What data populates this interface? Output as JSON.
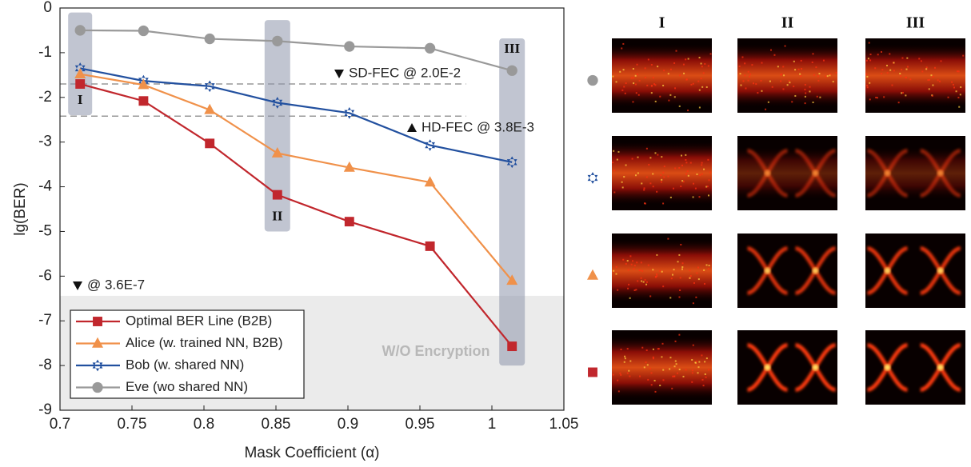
{
  "chart_data": {
    "type": "line",
    "xlabel": "Mask Coefficient (α)",
    "ylabel": "lg(BER)",
    "xlim": [
      0.7,
      1.05
    ],
    "xticks": [
      0.7,
      0.75,
      0.8,
      0.85,
      0.9,
      0.95,
      1,
      1.05
    ],
    "ylim": [
      -9,
      0
    ],
    "yticks": [
      0,
      -1,
      -2,
      -3,
      -4,
      -5,
      -6,
      -7,
      -8,
      -9
    ],
    "x": [
      0.714,
      0.758,
      0.804,
      0.851,
      0.901,
      0.957,
      1.014
    ],
    "series": [
      {
        "name": "Optimal BER Line (B2B)",
        "color": "#c1272d",
        "marker": "square",
        "values": [
          -1.7,
          -2.08,
          -3.03,
          -4.18,
          -4.78,
          -5.33,
          -7.57
        ]
      },
      {
        "name": "Alice (w. trained NN, B2B)",
        "color": "#f0914a",
        "marker": "triangle",
        "values": [
          -1.48,
          -1.72,
          -2.28,
          -3.25,
          -3.57,
          -3.9,
          -6.1
        ]
      },
      {
        "name": "Bob (w. shared NN)",
        "color": "#22509f",
        "marker": "hexagram",
        "values": [
          -1.35,
          -1.63,
          -1.75,
          -2.12,
          -2.35,
          -3.07,
          -3.45
        ]
      },
      {
        "name": "Eve (wo shared NN)",
        "color": "#999999",
        "marker": "circle",
        "values": [
          -0.5,
          -0.51,
          -0.69,
          -0.74,
          -0.86,
          -0.9,
          -1.4
        ]
      }
    ],
    "legend": "lower left",
    "thresholds": [
      {
        "label": "SD-FEC @ 2.0E-2",
        "value": -1.7,
        "style": "dashed"
      },
      {
        "label": "HD-FEC @ 3.8E-3",
        "value": -2.42,
        "style": "dashed"
      },
      {
        "label": "@ 3.6E-7",
        "value": -6.44,
        "style": "shaded"
      }
    ],
    "shaded_region_label": "W/O Encryption",
    "highlights": [
      {
        "label": "I",
        "x": 0.714,
        "ylim": [
          -2.4,
          -0.1
        ]
      },
      {
        "label": "II",
        "x": 0.851,
        "ylim": [
          -5.0,
          -0.27
        ]
      },
      {
        "label": "III",
        "x": 1.014,
        "ylim": [
          -8.0,
          -0.68
        ]
      }
    ]
  },
  "eye_diagrams": {
    "columns": [
      "I",
      "II",
      "III"
    ]
  }
}
